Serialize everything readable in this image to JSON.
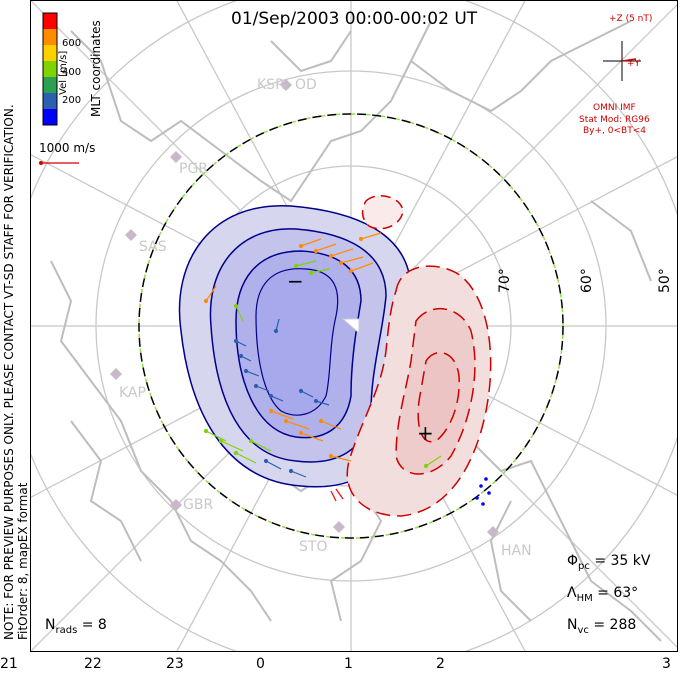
{
  "title": "01/Sep/2003 00:00-00:02 UT",
  "coordinates_label": "MLT coordinates",
  "side_note": {
    "line1": "NOTE: FOR PREVIEW PURPOSES ONLY. PLEASE CONTACT VT-SD STAFF FOR VERIFICATION.",
    "line2": "FitOrder: 8, mapEX format"
  },
  "colorbar": {
    "label": "Vel [m/s]",
    "ticks": [
      "600",
      "400",
      "200"
    ],
    "colors": [
      "#ff0000",
      "#ff8c00",
      "#ffd000",
      "#7fd400",
      "#2aa050",
      "#2b5fb0",
      "#0000ff"
    ]
  },
  "reference_vector": {
    "label": "1000 m/s",
    "color": "#d00000"
  },
  "imf": {
    "z_label": "+Z (5 nT)",
    "y_label": "+Y",
    "source": "OMNI IMF",
    "model": "Stat Mod: RG96",
    "condition": "By+, 0<BT<4",
    "color": "#d00000"
  },
  "latitude_labels": [
    "70°",
    "60°",
    "50°"
  ],
  "stations": [
    "KSR",
    "OD",
    "PGR",
    "SAS",
    "KAP",
    "GBR",
    "STO",
    "HAN"
  ],
  "potential_markers": {
    "negative": "−",
    "positive": "+"
  },
  "mlt_labels": [
    "21",
    "22",
    "23",
    "0",
    "1",
    "2",
    "3"
  ],
  "stats": {
    "phi_symbol": "Φ",
    "phi_sub": "pc",
    "phi_value": " = 35 kV",
    "lambda_symbol": "Λ",
    "lambda_sub": "HM",
    "lambda_value": " = 63°",
    "nvc_symbol": "N",
    "nvc_sub": "vc",
    "nvc_value": " = 288",
    "nrads_symbol": "N",
    "nrads_sub": "rads",
    "nrads_value": " = 8"
  },
  "colors": {
    "negative_cell": "#a8a8ec",
    "negative_contour": "#00008b",
    "positive_cell": "#f3c9c9",
    "positive_contour": "#cc0000",
    "grid": "#c8c8c8",
    "coastline": "#bdbdbd"
  }
}
